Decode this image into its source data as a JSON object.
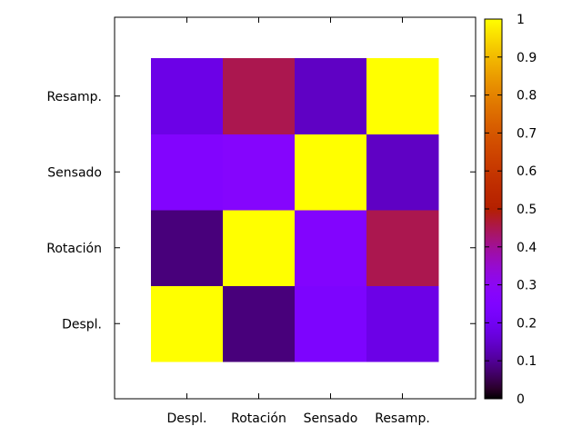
{
  "chart_data": {
    "type": "heatmap",
    "x_categories": [
      "Despl.",
      "Rotación",
      "Sensado",
      "Resamp."
    ],
    "y_categories": [
      "Despl.",
      "Rotación",
      "Sensado",
      "Resamp."
    ],
    "matrix": [
      [
        1.0,
        0.08,
        0.24,
        0.18
      ],
      [
        0.08,
        1.0,
        0.26,
        0.45
      ],
      [
        0.26,
        0.27,
        1.0,
        0.14
      ],
      [
        0.18,
        0.45,
        0.14,
        1.0
      ]
    ],
    "colorbar": {
      "range": [
        0,
        1
      ],
      "ticks": [
        "0",
        "0.1",
        "0.2",
        "0.3",
        "0.4",
        "0.5",
        "0.6",
        "0.7",
        "0.8",
        "0.9",
        "1"
      ],
      "palette": "black-blue-purple-red-orange-yellow"
    },
    "title": "",
    "xlabel": "",
    "ylabel": "",
    "grid": false
  }
}
